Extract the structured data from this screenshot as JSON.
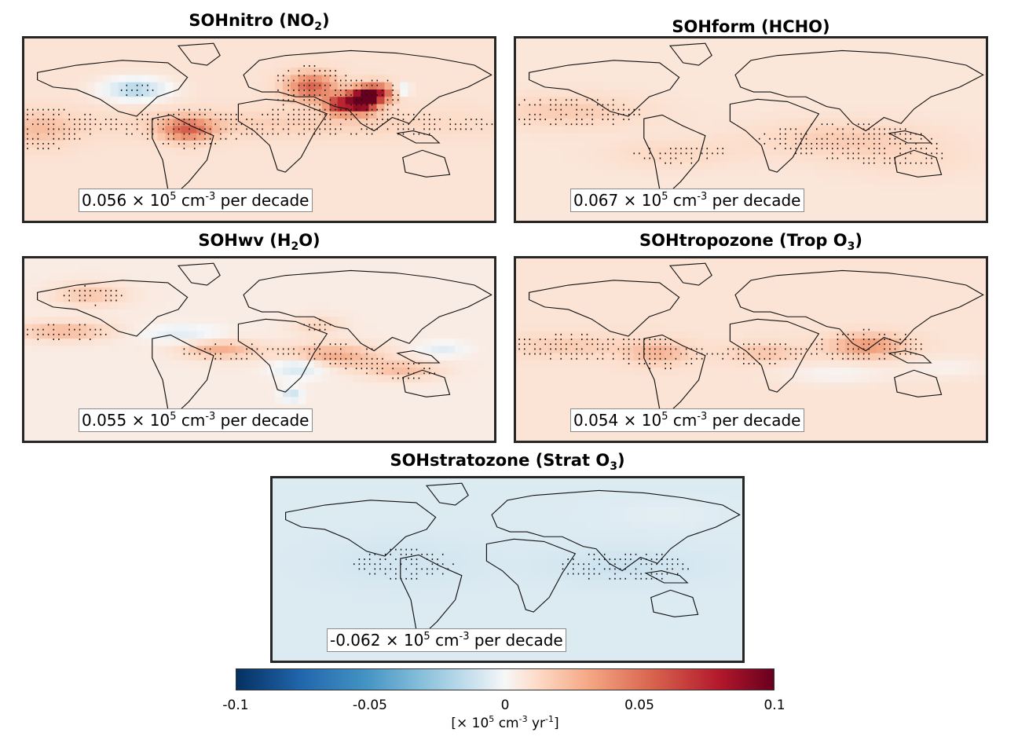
{
  "chart_data": [
    {
      "type": "heatmap",
      "title_text": "SOHnitro (NO",
      "title_sub": "2",
      "title_end": ")",
      "annotation": {
        "value": "0.056",
        "times": "×",
        "base": "10",
        "exp": "5",
        "unit": "cm",
        "unit_exp": "-3",
        "suffix": "per decade"
      },
      "pattern": "nitro",
      "x_range": [
        -180,
        180
      ],
      "y_range": [
        -60,
        90
      ]
    },
    {
      "type": "heatmap",
      "title_text": "SOHform (HCHO)",
      "title_sub": "",
      "title_end": "",
      "annotation": {
        "value": "0.067",
        "times": "×",
        "base": "10",
        "exp": "5",
        "unit": "cm",
        "unit_exp": "-3",
        "suffix": "per decade"
      },
      "pattern": "form",
      "x_range": [
        -180,
        180
      ],
      "y_range": [
        -60,
        90
      ]
    },
    {
      "type": "heatmap",
      "title_text": "SOHwv (H",
      "title_sub": "2",
      "title_end": "O)",
      "annotation": {
        "value": "0.055",
        "times": "×",
        "base": "10",
        "exp": "5",
        "unit": "cm",
        "unit_exp": "-3",
        "suffix": "per decade"
      },
      "pattern": "wv",
      "x_range": [
        -180,
        180
      ],
      "y_range": [
        -60,
        90
      ]
    },
    {
      "type": "heatmap",
      "title_text": "SOHtropozone (Trop O",
      "title_sub": "3",
      "title_end": ")",
      "annotation": {
        "value": "0.054",
        "times": "×",
        "base": "10",
        "exp": "5",
        "unit": "cm",
        "unit_exp": "-3",
        "suffix": "per decade"
      },
      "pattern": "tropo",
      "x_range": [
        -180,
        180
      ],
      "y_range": [
        -60,
        90
      ]
    },
    {
      "type": "heatmap",
      "title_text": "SOHstratozone (Strat O",
      "title_sub": "3",
      "title_end": ")",
      "annotation": {
        "value": "-0.062",
        "times": "×",
        "base": "10",
        "exp": "5",
        "unit": "cm",
        "unit_exp": "-3",
        "suffix": "per decade"
      },
      "pattern": "strato",
      "x_range": [
        -180,
        180
      ],
      "y_range": [
        -60,
        90
      ]
    }
  ],
  "colorbar": {
    "range": [
      -0.1,
      0.1
    ],
    "ticks": [
      "-0.1",
      "-0.05",
      "0",
      "0.05",
      "0.1"
    ],
    "colormap": [
      "#053061",
      "#2166ac",
      "#4393c3",
      "#92c5de",
      "#d1e5f0",
      "#f7f7f7",
      "#fddbc7",
      "#f4a582",
      "#d6604d",
      "#b2182b",
      "#67001f"
    ],
    "label": {
      "open": "[",
      "times": "×",
      "base": "10",
      "exp": "5",
      "unit": "cm",
      "unit_exp": "-3",
      "yr": "yr",
      "yr_exp": "-1",
      "close": "]"
    }
  }
}
